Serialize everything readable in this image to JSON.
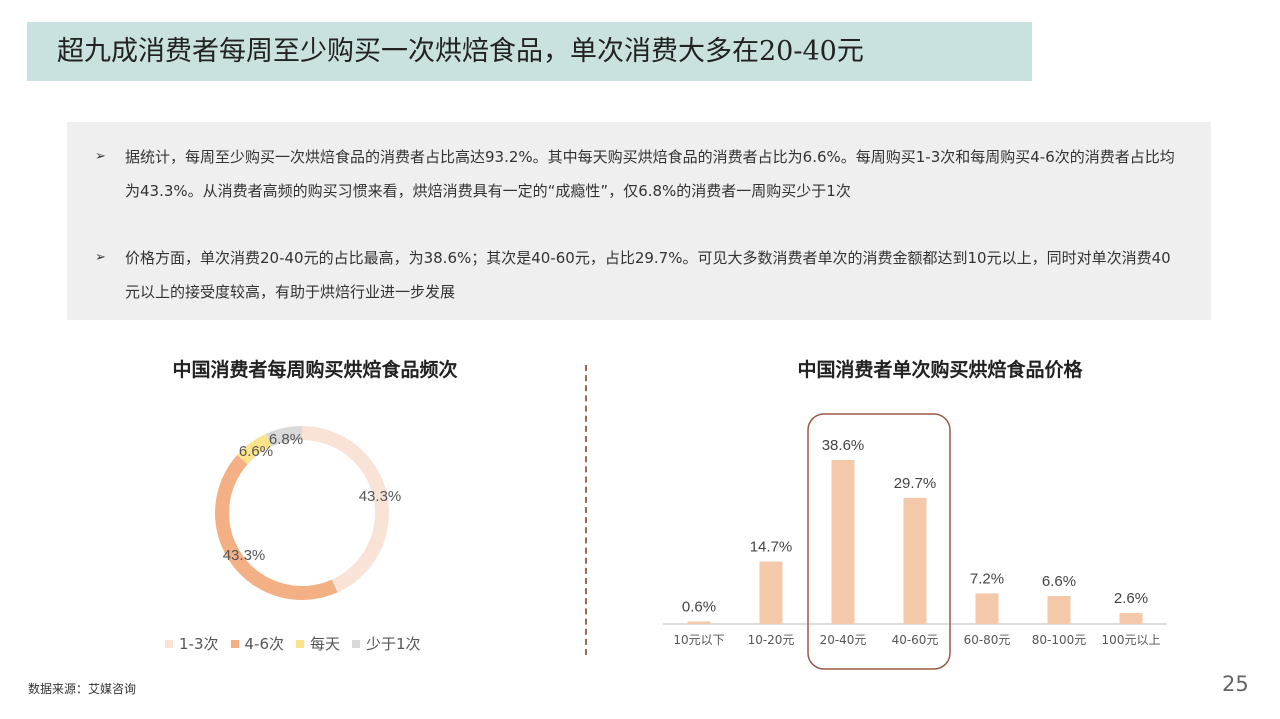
{
  "title": "超九成消费者每周至少购买一次烘焙食品，单次消费大多在20-40元",
  "summary": {
    "bullet_marker": "➢",
    "bullet1": "据统计，每周至少购买一次烘焙食品的消费者占比高达93.2%。其中每天购买烘焙食品的消费者占比为6.6%。每周购买1-3次和每周购买4-6次的消费者占比均为43.3%。从消费者高频的购买习惯来看，烘焙消费具有一定的“成瘾性”，仅6.8%的消费者一周购买少于1次",
    "bullet2": "价格方面，单次消费20-40元的占比最高，为38.6%；其次是40-60元，占比29.7%。可见大多数消费者单次的消费金额都达到10元以上，同时对单次消费40元以上的接受度较高，有助于烘焙行业进一步发展"
  },
  "colors": {
    "title_bg": "#c9e2e0",
    "bar": "#f4c9aa",
    "highlight_border": "#9b5a45",
    "donut_1_3": "#f9e3d6",
    "donut_4_6": "#f2b084",
    "donut_daily": "#fbe38e",
    "donut_less": "#d9d9d9"
  },
  "chart_data": [
    {
      "type": "pie",
      "title": "中国消费者每周购买烘焙食品频次",
      "donut": true,
      "labels": [
        "1-3次",
        "4-6次",
        "每天",
        "少于1次"
      ],
      "values": [
        43.3,
        43.3,
        6.6,
        6.8
      ],
      "value_labels": [
        "43.3%",
        "43.3%",
        "6.6%",
        "6.8%"
      ],
      "legend_position": "bottom"
    },
    {
      "type": "bar",
      "title": "中国消费者单次购买烘焙食品价格",
      "categories": [
        "10元以下",
        "10-20元",
        "20-40元",
        "40-60元",
        "60-80元",
        "80-100元",
        "100元以上"
      ],
      "values": [
        0.6,
        14.7,
        38.6,
        29.7,
        7.2,
        6.6,
        2.6
      ],
      "value_labels": [
        "0.6%",
        "14.7%",
        "38.6%",
        "29.7%",
        "7.2%",
        "6.6%",
        "2.6%"
      ],
      "highlighted": [
        "20-40元",
        "40-60元"
      ],
      "ylim": [
        0,
        45
      ],
      "grid": false
    }
  ],
  "footer": {
    "source": "数据来源：艾媒咨询",
    "page": "25"
  }
}
